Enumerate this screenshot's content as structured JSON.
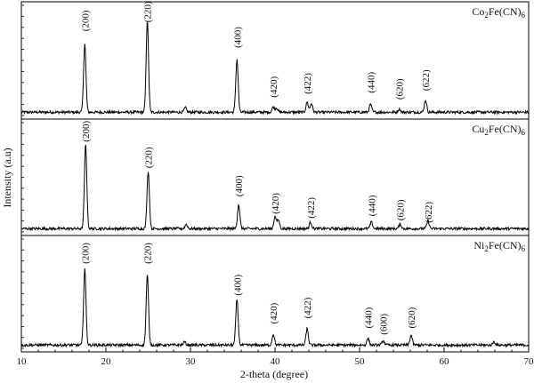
{
  "chart_data": {
    "type": "line",
    "xlabel": "2-theta (degree)",
    "ylabel": "Intensity (a.u)",
    "xlim": [
      10,
      70
    ],
    "xticks": [
      10,
      20,
      30,
      40,
      50,
      60,
      70
    ],
    "grid": false,
    "panels": [
      {
        "compound": {
          "pre": "Co",
          "sub1": "2",
          "mid": "Fe(CN)",
          "sub2": "6"
        },
        "baseline": 0.03,
        "peaks": [
          {
            "x": 17.5,
            "h": 0.62,
            "label": "(200)",
            "label_y": 0.86
          },
          {
            "x": 24.9,
            "h": 0.83,
            "label": "(220)",
            "label_y": 0.94
          },
          {
            "x": 29.4,
            "h": 0.04,
            "label": "",
            "label_y": 0
          },
          {
            "x": 35.5,
            "h": 0.48,
            "label": "(400)",
            "label_y": 0.71
          },
          {
            "x": 39.8,
            "h": 0.05,
            "label": "(420)",
            "label_y": 0.26
          },
          {
            "x": 40.2,
            "h": 0.04,
            "label": "",
            "label_y": 0
          },
          {
            "x": 43.8,
            "h": 0.09,
            "label": "(422)",
            "label_y": 0.29
          },
          {
            "x": 44.3,
            "h": 0.08,
            "label": "",
            "label_y": 0
          },
          {
            "x": 51.3,
            "h": 0.07,
            "label": "(440)",
            "label_y": 0.3
          },
          {
            "x": 54.7,
            "h": 0.03,
            "label": "(620)",
            "label_y": 0.24
          },
          {
            "x": 57.8,
            "h": 0.11,
            "label": "(622)",
            "label_y": 0.32
          }
        ]
      },
      {
        "compound": {
          "pre": "Cu",
          "sub1": "2",
          "mid": "Fe(CN)",
          "sub2": "6"
        },
        "baseline": 0.03,
        "peaks": [
          {
            "x": 17.6,
            "h": 0.77,
            "label": "(200)",
            "label_y": 0.92
          },
          {
            "x": 25.0,
            "h": 0.53,
            "label": "(220)",
            "label_y": 0.68
          },
          {
            "x": 29.5,
            "h": 0.04,
            "label": "",
            "label_y": 0
          },
          {
            "x": 35.7,
            "h": 0.22,
            "label": "(400)",
            "label_y": 0.42
          },
          {
            "x": 40.0,
            "h": 0.11,
            "label": "(420)",
            "label_y": 0.26
          },
          {
            "x": 40.4,
            "h": 0.08,
            "label": "",
            "label_y": 0
          },
          {
            "x": 44.2,
            "h": 0.06,
            "label": "(422)",
            "label_y": 0.22
          },
          {
            "x": 51.4,
            "h": 0.06,
            "label": "(440)",
            "label_y": 0.24
          },
          {
            "x": 54.8,
            "h": 0.04,
            "label": "(620)",
            "label_y": 0.2
          },
          {
            "x": 58.1,
            "h": 0.07,
            "label": "(622)",
            "label_y": 0.18
          }
        ]
      },
      {
        "compound": {
          "pre": "Ni",
          "sub1": "2",
          "mid": "Fe(CN)",
          "sub2": "6"
        },
        "baseline": 0.03,
        "peaks": [
          {
            "x": 17.5,
            "h": 0.7,
            "label": "(200)",
            "label_y": 0.87
          },
          {
            "x": 24.9,
            "h": 0.64,
            "label": "(220)",
            "label_y": 0.87
          },
          {
            "x": 29.3,
            "h": 0.03,
            "label": "",
            "label_y": 0
          },
          {
            "x": 35.5,
            "h": 0.42,
            "label": "(400)",
            "label_y": 0.58
          },
          {
            "x": 39.8,
            "h": 0.1,
            "label": "(420)",
            "label_y": 0.32
          },
          {
            "x": 43.8,
            "h": 0.15,
            "label": "(422)",
            "label_y": 0.37
          },
          {
            "x": 51.0,
            "h": 0.06,
            "label": "(440)",
            "label_y": 0.28
          },
          {
            "x": 52.8,
            "h": 0.04,
            "label": "(600)",
            "label_y": 0.22
          },
          {
            "x": 56.1,
            "h": 0.09,
            "label": "(620)",
            "label_y": 0.28
          },
          {
            "x": 65.9,
            "h": 0.03,
            "label": "",
            "label_y": 0
          }
        ]
      }
    ]
  }
}
